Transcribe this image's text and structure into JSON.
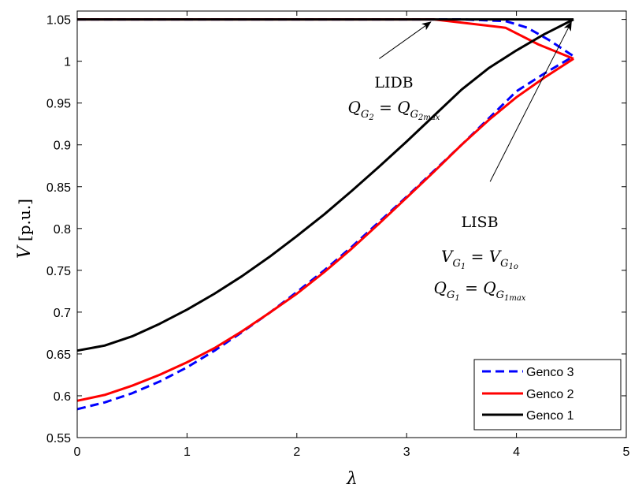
{
  "chart_data": {
    "type": "line",
    "title": "",
    "xlabel": "λ",
    "ylabel": "V",
    "ylabel_unit": "[p.u.]",
    "xlim": [
      0,
      5
    ],
    "ylim": [
      0.55,
      1.06
    ],
    "xticks": [
      0,
      1,
      2,
      3,
      4,
      5
    ],
    "xtick_labels": [
      "0",
      "1",
      "2",
      "3",
      "4",
      "5"
    ],
    "yticks": [
      0.55,
      0.6,
      0.65,
      0.7,
      0.75,
      0.8,
      0.85,
      0.9,
      0.95,
      1.0,
      1.05
    ],
    "ytick_labels": [
      "0.55",
      "0.6",
      "0.65",
      "0.7",
      "0.75",
      "0.8",
      "0.85",
      "0.9",
      "0.95",
      "1",
      "1.05"
    ],
    "grid": false,
    "legend_position": "bottom-right",
    "series": [
      {
        "name": "Genco 3",
        "color": "#0000ff",
        "dash": "dashed",
        "upper": {
          "x": [
            0,
            3.5,
            3.9,
            4.1,
            4.3,
            4.52
          ],
          "y": [
            1.05,
            1.05,
            1.048,
            1.04,
            1.025,
            1.006
          ]
        },
        "lower": {
          "x": [
            0,
            0.25,
            0.5,
            0.75,
            1.0,
            1.25,
            1.5,
            1.75,
            2.0,
            2.25,
            2.5,
            2.75,
            3.0,
            3.25,
            3.5,
            3.75,
            4.0,
            4.25,
            4.52
          ],
          "y": [
            0.584,
            0.592,
            0.603,
            0.617,
            0.634,
            0.654,
            0.676,
            0.699,
            0.724,
            0.75,
            0.778,
            0.808,
            0.838,
            0.869,
            0.9,
            0.932,
            0.964,
            0.985,
            1.006
          ]
        }
      },
      {
        "name": "Genco 2",
        "color": "#ff0000",
        "dash": "solid",
        "upper": {
          "x": [
            0,
            3.25,
            3.9,
            4.2,
            4.52
          ],
          "y": [
            1.05,
            1.05,
            1.04,
            1.02,
            1.003
          ]
        },
        "lower": {
          "x": [
            0,
            0.25,
            0.5,
            0.75,
            1.0,
            1.25,
            1.5,
            1.75,
            2.0,
            2.25,
            2.5,
            2.75,
            3.0,
            3.25,
            3.5,
            3.75,
            4.0,
            4.25,
            4.52
          ],
          "y": [
            0.594,
            0.601,
            0.612,
            0.625,
            0.64,
            0.657,
            0.677,
            0.699,
            0.722,
            0.748,
            0.776,
            0.806,
            0.837,
            0.868,
            0.9,
            0.93,
            0.957,
            0.98,
            1.003
          ]
        }
      },
      {
        "name": "Genco 1",
        "color": "#000000",
        "dash": "solid",
        "upper": {
          "x": [
            0,
            4.52
          ],
          "y": [
            1.05,
            1.05
          ]
        },
        "lower": {
          "x": [
            0,
            0.25,
            0.5,
            0.75,
            1.0,
            1.25,
            1.5,
            1.75,
            2.0,
            2.25,
            2.5,
            2.75,
            3.0,
            3.25,
            3.5,
            3.75,
            4.0,
            4.25,
            4.52
          ],
          "y": [
            0.654,
            0.66,
            0.671,
            0.686,
            0.703,
            0.722,
            0.743,
            0.766,
            0.791,
            0.817,
            0.845,
            0.874,
            0.904,
            0.935,
            0.966,
            0.992,
            1.013,
            1.032,
            1.05
          ]
        }
      }
    ],
    "annotations": [
      {
        "id": "lidb",
        "title": "LIDB",
        "equations": [
          "Q_G2 = Q_G2max"
        ],
        "arrow_from": [
          2.75,
          1.003
        ],
        "arrow_to": [
          3.22,
          1.047
        ]
      },
      {
        "id": "lisb",
        "title": "LISB",
        "equations": [
          "V_G1 = V_G1o",
          "Q_G1 = Q_G1max"
        ],
        "arrow_from": [
          3.76,
          0.856
        ],
        "arrow_to": [
          4.5,
          1.047
        ]
      }
    ]
  }
}
